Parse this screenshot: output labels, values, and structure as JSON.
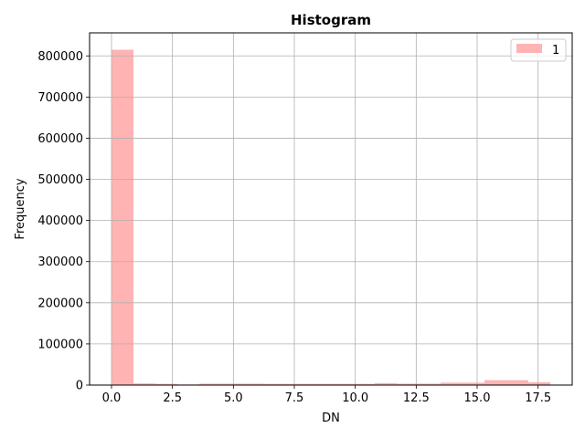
{
  "chart_data": {
    "type": "bar",
    "title": "Histogram",
    "xlabel": "DN",
    "ylabel": "Frequency",
    "xlim": [
      -0.9,
      18.9
    ],
    "ylim": [
      0,
      856000
    ],
    "grid": true,
    "legend_position": "top-right",
    "x_ticks": [
      0,
      2.5,
      5,
      7.5,
      10,
      12.5,
      15,
      17.5
    ],
    "x_tick_labels": [
      "0.0",
      "2.5",
      "5.0",
      "7.5",
      "10.0",
      "12.5",
      "15.0",
      "17.5"
    ],
    "y_ticks": [
      0,
      100000,
      200000,
      300000,
      400000,
      500000,
      600000,
      700000,
      800000
    ],
    "y_tick_labels": [
      "0",
      "100000",
      "200000",
      "300000",
      "400000",
      "500000",
      "600000",
      "700000",
      "800000"
    ],
    "series": [
      {
        "name": "1",
        "color": "#ffb3b3",
        "bins": [
          {
            "x0": 0.0,
            "x1": 0.9,
            "count": 815000
          },
          {
            "x0": 0.9,
            "x1": 1.8,
            "count": 4000
          },
          {
            "x0": 1.8,
            "x1": 2.7,
            "count": 3000
          },
          {
            "x0": 2.7,
            "x1": 3.6,
            "count": 1500
          },
          {
            "x0": 3.6,
            "x1": 4.5,
            "count": 3500
          },
          {
            "x0": 4.5,
            "x1": 5.4,
            "count": 3500
          },
          {
            "x0": 5.4,
            "x1": 6.3,
            "count": 3500
          },
          {
            "x0": 6.3,
            "x1": 7.2,
            "count": 3000
          },
          {
            "x0": 7.2,
            "x1": 8.1,
            "count": 3000
          },
          {
            "x0": 8.1,
            "x1": 9.0,
            "count": 3000
          },
          {
            "x0": 9.0,
            "x1": 9.9,
            "count": 3000
          },
          {
            "x0": 9.9,
            "x1": 10.8,
            "count": 3000
          },
          {
            "x0": 10.8,
            "x1": 11.7,
            "count": 5000
          },
          {
            "x0": 11.7,
            "x1": 12.6,
            "count": 3500
          },
          {
            "x0": 12.6,
            "x1": 13.5,
            "count": 3500
          },
          {
            "x0": 13.5,
            "x1": 14.4,
            "count": 6000
          },
          {
            "x0": 14.4,
            "x1": 15.3,
            "count": 6000
          },
          {
            "x0": 15.3,
            "x1": 16.2,
            "count": 12000
          },
          {
            "x0": 16.2,
            "x1": 17.1,
            "count": 12000
          },
          {
            "x0": 17.1,
            "x1": 18.0,
            "count": 7000
          }
        ]
      }
    ]
  }
}
